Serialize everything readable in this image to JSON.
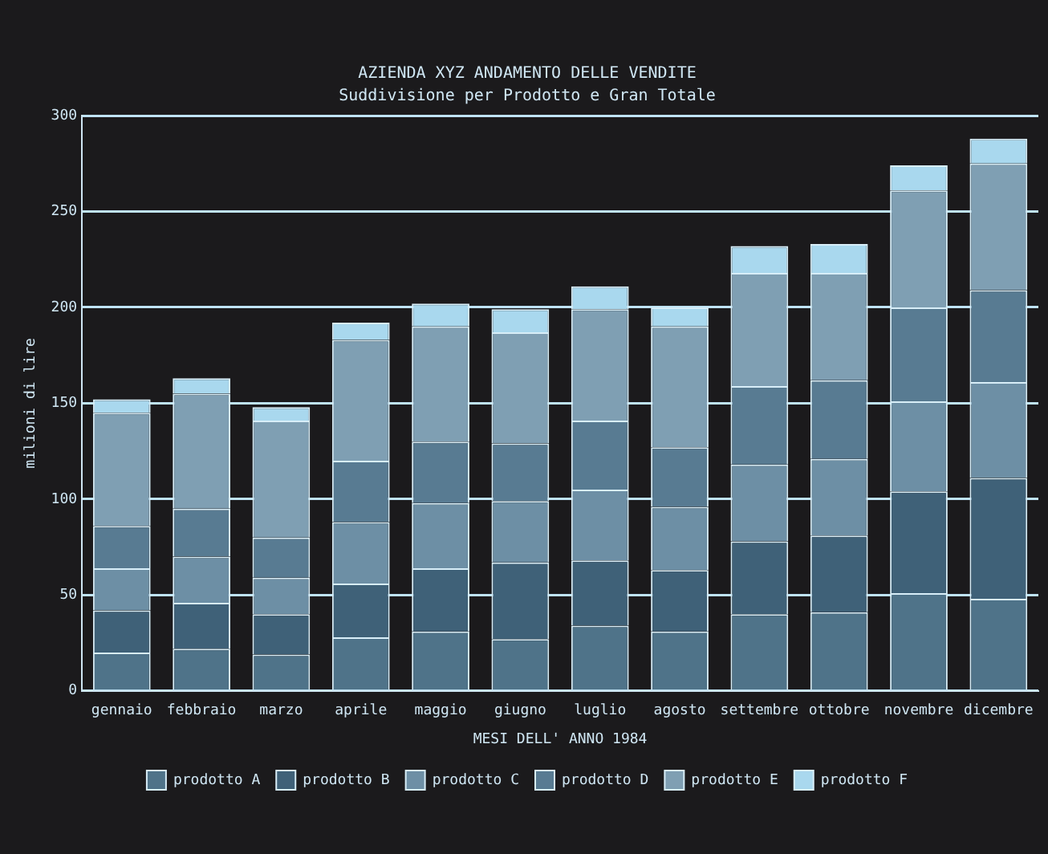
{
  "chart_data": {
    "type": "bar",
    "stacked": true,
    "title": "AZIENDA XYZ ANDAMENTO DELLE VENDITE",
    "subtitle": "Suddivisione per Prodotto e Gran Totale",
    "xlabel": "MESI DELL' ANNO 1984",
    "ylabel": "milioni di lire",
    "categories": [
      "gennaio",
      "febbraio",
      "marzo",
      "aprile",
      "maggio",
      "giugno",
      "luglio",
      "agosto",
      "settembre",
      "ottobre",
      "novembre",
      "dicembre"
    ],
    "series": [
      {
        "name": "prodotto A",
        "color": "#4f7389",
        "values": [
          20,
          22,
          19,
          28,
          31,
          27,
          34,
          31,
          40,
          41,
          51,
          48
        ]
      },
      {
        "name": "prodotto B",
        "color": "#3f6178",
        "values": [
          22,
          24,
          21,
          28,
          33,
          40,
          34,
          32,
          38,
          40,
          53,
          63
        ]
      },
      {
        "name": "prodotto C",
        "color": "#6d8fa5",
        "values": [
          22,
          24,
          19,
          32,
          34,
          32,
          37,
          33,
          40,
          40,
          47,
          50
        ]
      },
      {
        "name": "prodotto D",
        "color": "#587b92",
        "values": [
          22,
          25,
          21,
          32,
          32,
          30,
          36,
          31,
          41,
          41,
          49,
          48
        ]
      },
      {
        "name": "prodotto E",
        "color": "#7f9fb3",
        "values": [
          59,
          60,
          61,
          63,
          60,
          58,
          58,
          63,
          59,
          56,
          61,
          66
        ]
      },
      {
        "name": "prodotto F",
        "color": "#a9d8ee",
        "values": [
          7,
          8,
          7,
          9,
          12,
          12,
          12,
          10,
          14,
          15,
          13,
          13
        ]
      }
    ],
    "ylim": [
      0,
      300
    ],
    "yticks": [
      0,
      50,
      100,
      150,
      200,
      250,
      300
    ],
    "grid": "y",
    "legend": "bottom"
  }
}
